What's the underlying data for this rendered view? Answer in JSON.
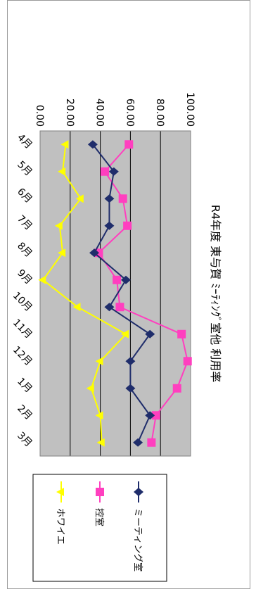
{
  "chart_data": {
    "type": "line",
    "title": "R4年度 東与賀 ﾐｰﾃｨﾝｸﾞ室他 利用率",
    "categories": [
      "4月",
      "5月",
      "6月",
      "7月",
      "8月",
      "9月",
      "10月",
      "11月",
      "12月",
      "1月",
      "2月",
      "3月"
    ],
    "ylim": [
      0,
      100
    ],
    "yticks": [
      "0.00",
      "20.00",
      "40.00",
      "60.00",
      "80.00",
      "100.00"
    ],
    "grid": true,
    "legend_position": "right",
    "plot_background": "#c0c0c0",
    "series": [
      {
        "name": "ミーティング室",
        "color": "#1f2d6b",
        "marker": "diamond",
        "values": [
          35,
          49,
          46,
          46,
          36,
          57,
          46,
          73,
          60,
          60,
          73,
          65
        ]
      },
      {
        "name": "控室",
        "color": "#ff3fbf",
        "marker": "square",
        "values": [
          59,
          43,
          55,
          58,
          39,
          51,
          53,
          94,
          98,
          91,
          77,
          74
        ]
      },
      {
        "name": "ホワイエ",
        "color": "#ffff00",
        "marker": "triangle",
        "values": [
          17,
          15,
          27,
          13,
          15,
          2,
          25,
          57,
          40,
          34,
          40,
          41
        ]
      }
    ]
  }
}
